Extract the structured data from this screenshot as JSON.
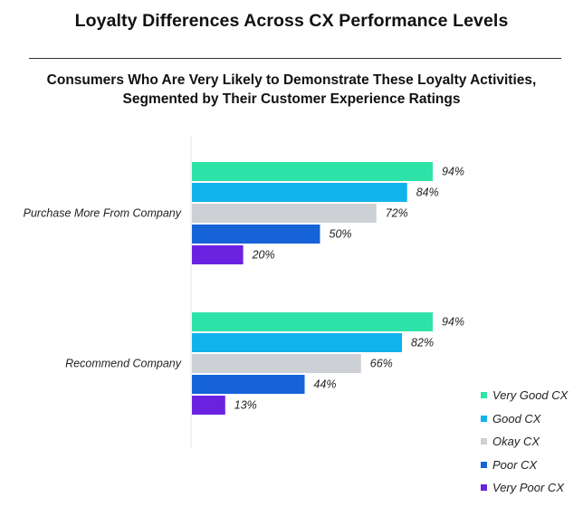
{
  "title": "Loyalty Differences Across CX Performance Levels",
  "subtitle_line1": "Consumers Who Are Very Likely to Demonstrate These Loyalty Activities,",
  "subtitle_line2": "Segmented by Their Customer Experience Ratings",
  "chart_data": {
    "type": "bar",
    "orientation": "horizontal",
    "categories": [
      "Purchase More From Company",
      "Recommend Company"
    ],
    "series": [
      {
        "name": "Very Good CX",
        "color": "#2ee3a8",
        "values": [
          94,
          94
        ],
        "labels": [
          "94%",
          "94%"
        ]
      },
      {
        "name": "Good CX",
        "color": "#12b2ec",
        "values": [
          84,
          82
        ],
        "labels": [
          "84%",
          "82%"
        ]
      },
      {
        "name": "Okay CX",
        "color": "#cdd0d4",
        "values": [
          72,
          66
        ],
        "labels": [
          "72%",
          "66%"
        ]
      },
      {
        "name": "Poor CX",
        "color": "#1663d8",
        "values": [
          50,
          44
        ],
        "labels": [
          "50%",
          "44%"
        ]
      },
      {
        "name": "Very Poor CX",
        "color": "#6a22e0",
        "values": [
          20,
          13
        ],
        "labels": [
          "20%",
          "13%"
        ]
      }
    ],
    "xlim": [
      0,
      100
    ],
    "grid": false,
    "legend_position": "bottom-right"
  }
}
